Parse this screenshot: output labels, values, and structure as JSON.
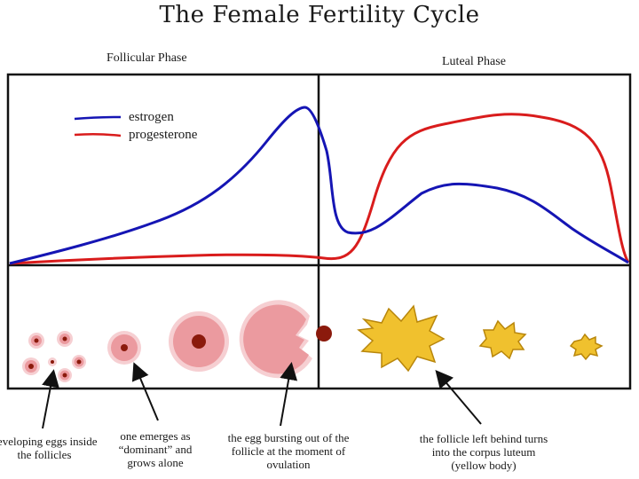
{
  "title": "The Female Fertility Cycle",
  "phases": {
    "follicular": "Follicular Phase",
    "luteal": "Luteal Phase"
  },
  "legend": {
    "estrogen": {
      "label": "estrogen",
      "color": "#1515b4"
    },
    "progesterone": {
      "label": "progesterone",
      "color": "#d91c1c"
    }
  },
  "captions": [
    "developing eggs inside the follicles",
    "one emerges as “dominant” and grows alone",
    "the egg bursting out of the follicle at the moment of ovulation",
    "the follicle left behind turns into the corpus luteum (yellow body)"
  ],
  "colors": {
    "follicle_fill": "#eb9a9f",
    "follicle_ring": "#f6cfd2",
    "egg": "#8b1a0c",
    "corpus_luteum": "#f0c12e",
    "corpus_luteum_edge": "#b8860b"
  }
}
